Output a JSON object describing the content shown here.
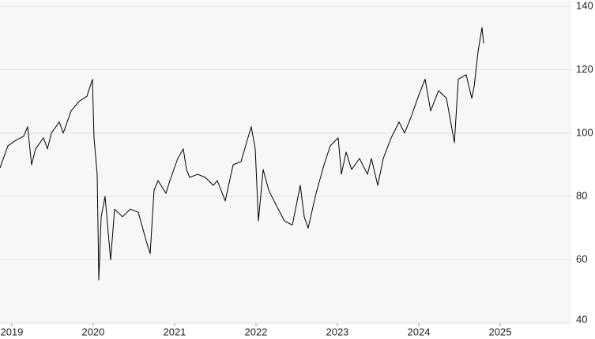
{
  "chart_data": {
    "type": "line",
    "x": [
      2018.855,
      2018.952,
      2019.049,
      2019.146,
      2019.195,
      2019.243,
      2019.292,
      2019.389,
      2019.438,
      2019.486,
      2019.583,
      2019.632,
      2019.729,
      2019.826,
      2019.923,
      2019.991,
      2020.01,
      2020.049,
      2020.069,
      2020.098,
      2020.146,
      2020.214,
      2020.263,
      2020.36,
      2020.457,
      2020.554,
      2020.651,
      2020.7,
      2020.748,
      2020.797,
      2020.894,
      2020.942,
      2021.039,
      2021.107,
      2021.146,
      2021.185,
      2021.282,
      2021.379,
      2021.476,
      2021.525,
      2021.622,
      2021.719,
      2021.816,
      2021.884,
      2021.942,
      2021.991,
      2022.03,
      2022.088,
      2022.156,
      2022.253,
      2022.35,
      2022.447,
      2022.544,
      2022.593,
      2022.641,
      2022.738,
      2022.836,
      2022.913,
      2023.01,
      2023.049,
      2023.107,
      2023.175,
      2023.272,
      2023.37,
      2023.418,
      2023.496,
      2023.564,
      2023.661,
      2023.758,
      2023.826,
      2023.904,
      2024.001,
      2024.078,
      2024.146,
      2024.243,
      2024.34,
      2024.438,
      2024.486,
      2024.583,
      2024.651,
      2024.68,
      2024.729,
      2024.777,
      2024.797
    ],
    "series": [
      {
        "color": "#000000",
        "values": [
          89,
          96,
          97.7,
          99,
          102,
          90,
          95,
          98.5,
          95,
          100,
          103.5,
          100,
          107,
          110,
          111.6,
          117,
          98.5,
          87,
          53.7,
          73.6,
          80,
          60,
          76,
          73.6,
          76,
          75,
          66,
          62,
          82,
          85,
          81,
          85,
          92,
          95,
          88.5,
          86,
          87,
          86,
          83.5,
          85,
          78.6,
          90,
          91,
          97,
          102,
          95,
          72.3,
          88.5,
          82,
          77,
          72.3,
          71,
          83.5,
          73.6,
          70,
          81,
          90,
          96,
          98.5,
          87,
          94,
          88.5,
          92,
          87,
          92,
          83.5,
          92,
          98.5,
          103.5,
          100,
          105,
          112,
          117,
          107,
          113.4,
          111,
          97,
          117,
          118.4,
          111,
          114.6,
          125.8,
          133.3,
          128.3
        ]
      }
    ],
    "xlim": [
      2018.855,
      2025.874
    ],
    "xticks": [
      2019,
      2020,
      2021,
      2022,
      2023,
      2024,
      2025
    ],
    "ylim": [
      40,
      142
    ],
    "yticks": [
      40,
      60,
      80,
      100,
      120,
      140
    ],
    "grid": true
  }
}
